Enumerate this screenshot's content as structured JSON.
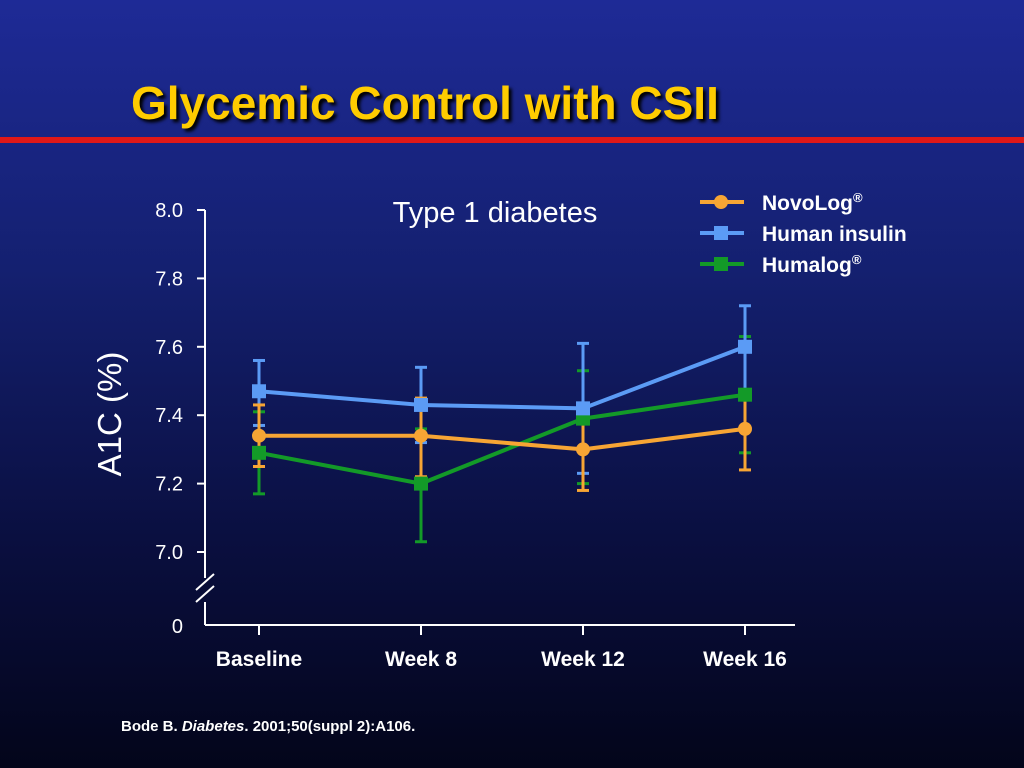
{
  "slide": {
    "title": "Glycemic Control with CSII",
    "source": {
      "author": "Bode B.",
      "journal": "Diabetes",
      "citation": ". 2001;50(suppl 2):A106."
    }
  },
  "colors": {
    "title": "#ffcc00",
    "rule": "#e01818",
    "text": "#ffffff"
  },
  "chart_data": {
    "type": "line",
    "title": "Type 1 diabetes",
    "xlabel": "",
    "ylabel": "A1C (%)",
    "categories": [
      "Baseline",
      "Week 8",
      "Week 12",
      "Week 16"
    ],
    "yticks": [
      "8.0",
      "7.8",
      "7.6",
      "7.4",
      "7.2",
      "7.0"
    ],
    "ylim": [
      7.0,
      8.0
    ],
    "axis_break": true,
    "axis_origin_label": "0",
    "grid": false,
    "legend_position": "top-right",
    "series": [
      {
        "name": "NovoLog",
        "name_mark": "®",
        "marker": "circle",
        "color": "#f7a534",
        "values": [
          7.34,
          7.34,
          7.3,
          7.36
        ],
        "error": [
          [
            7.25,
            7.43
          ],
          [
            7.22,
            7.45
          ],
          [
            7.18,
            7.42
          ],
          [
            7.24,
            7.47
          ]
        ]
      },
      {
        "name": "Human insulin",
        "name_mark": "",
        "marker": "square",
        "color": "#5b9bf5",
        "values": [
          7.47,
          7.43,
          7.42,
          7.6
        ],
        "error": [
          [
            7.37,
            7.56
          ],
          [
            7.32,
            7.54
          ],
          [
            7.23,
            7.61
          ],
          [
            7.47,
            7.72
          ]
        ]
      },
      {
        "name": "Humalog",
        "name_mark": "®",
        "marker": "square",
        "color": "#139a28",
        "values": [
          7.29,
          7.2,
          7.39,
          7.46
        ],
        "error": [
          [
            7.17,
            7.41
          ],
          [
            7.03,
            7.36
          ],
          [
            7.2,
            7.53
          ],
          [
            7.29,
            7.63
          ]
        ]
      }
    ]
  }
}
